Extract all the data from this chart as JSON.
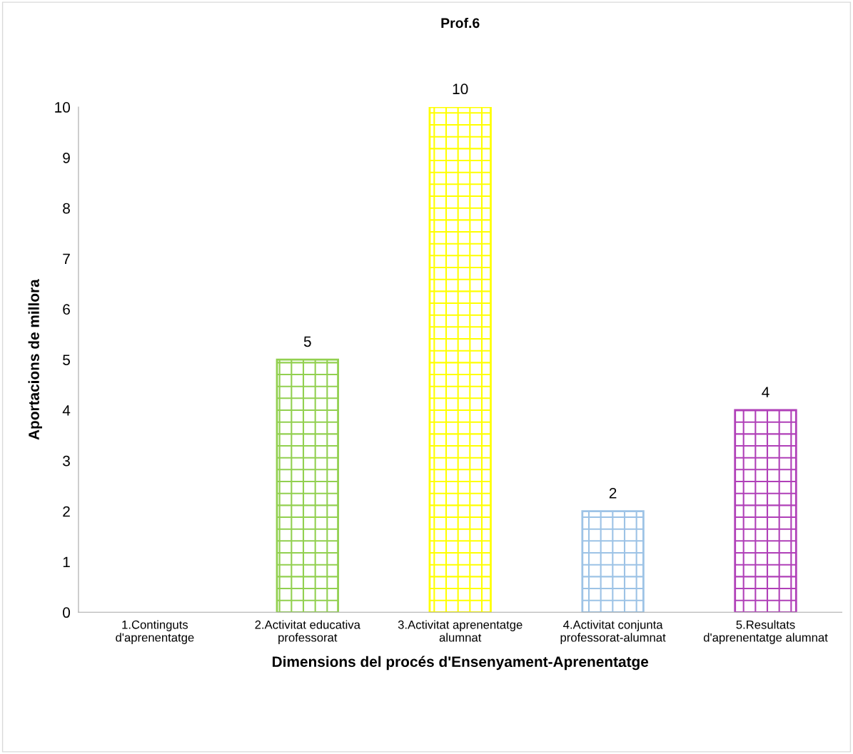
{
  "chart_data": {
    "type": "bar",
    "title": "Prof.6",
    "xlabel": "Dimensions del procés d'Ensenyament-Aprenentatge",
    "ylabel": "Aportacions de millora",
    "categories": [
      "1.Continguts\nd'aprenentatge",
      "2.Activitat educativa\nprofessorat",
      "3.Activitat aprenentatge\nalumnat",
      "4.Activitat conjunta\nprofessorat-alumnat",
      "5.Resultats\nd'aprenentatge alumnat"
    ],
    "values": [
      0,
      5,
      10,
      2,
      4
    ],
    "colors": [
      "#92d050",
      "#92d050",
      "#ffff00",
      "#9dc3e6",
      "#b040b8"
    ],
    "value_labels": [
      null,
      "5",
      "10",
      "2",
      "4"
    ],
    "ylim": [
      0,
      10
    ],
    "yticks": [
      0,
      1,
      2,
      3,
      4,
      5,
      6,
      7,
      8,
      9,
      10
    ],
    "grid": false,
    "legend": false
  }
}
